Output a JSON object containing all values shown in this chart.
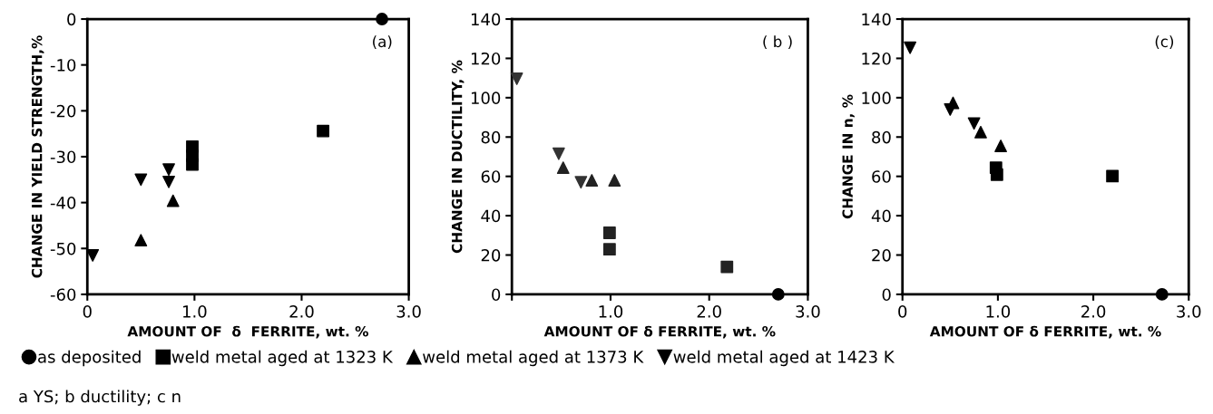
{
  "chart_data": [
    {
      "type": "scatter",
      "xlabel": "AMOUNT OF  δ  FERRITE, wt. %",
      "ylabel": "CHANGE IN YIELD STRENGTH,%",
      "xlim": [
        0,
        3
      ],
      "xticks": [
        0,
        {
          "value": 1,
          "label": "1.0"
        },
        {
          "value": 2,
          "label": "2.0"
        },
        {
          "value": 3,
          "label": "3.0"
        }
      ],
      "ylim": [
        -60,
        0
      ],
      "yticks": [
        -60,
        -50,
        -40,
        -30,
        -20,
        -10,
        0
      ],
      "grid": false,
      "legend": "bottom",
      "annotations": [
        "(a)",
        "a YS; b ductility; c n"
      ],
      "series": [
        {
          "name": "as deposited",
          "color": "#000000",
          "marker": "circle",
          "x": [
            2.75
          ],
          "values": [
            0
          ]
        },
        {
          "name": "weld metal aged at 1323 K",
          "color": "#000000",
          "marker": "square",
          "x": [
            0.98,
            0.98,
            0.98,
            2.2
          ],
          "values": [
            -27.8,
            -29.8,
            -31.7,
            -24.4
          ]
        },
        {
          "name": "weld metal aged at 1373 K",
          "color": "#000000",
          "marker": "triangle",
          "x": [
            0.5,
            0.8
          ],
          "values": [
            -48.2,
            -39.6
          ]
        },
        {
          "name": "weld metal aged at 1423 K",
          "color": "#000000",
          "marker": "triangle_down",
          "x": [
            0.05,
            0.5,
            0.76,
            0.76
          ],
          "values": [
            -51.5,
            -35,
            -32.8,
            -35.5
          ]
        }
      ]
    },
    {
      "type": "scatter",
      "xlabel": "AMOUNT OF δ FERRITE, wt. %",
      "ylabel": "CHANGE IN DUCTILITY, %",
      "xlim": [
        0,
        3
      ],
      "xticks": [
        {
          "value": 0,
          "label": null
        },
        {
          "value": 1,
          "label": "1.0"
        },
        {
          "value": 2,
          "label": "2.0"
        },
        {
          "value": 3,
          "label": "3.0"
        }
      ],
      "ylim": [
        0,
        140
      ],
      "yticks": [
        0,
        20,
        40,
        60,
        80,
        100,
        120,
        140
      ],
      "grid": false,
      "annotations": [
        "( b )"
      ],
      "series": [
        {
          "color": "#000000",
          "marker": "circle",
          "x": [
            2.7
          ],
          "values": [
            0
          ]
        },
        {
          "color": "#222222",
          "marker": "square",
          "x": [
            0.99,
            0.99,
            2.18
          ],
          "values": [
            31.3,
            22.9,
            14
          ]
        },
        {
          "color": "#222222",
          "marker": "triangle",
          "x": [
            0.52,
            0.81,
            1.04
          ],
          "values": [
            64.4,
            58,
            58
          ]
        },
        {
          "color": "#333333",
          "marker": "triangle_down",
          "x": [
            0.05,
            0.475,
            0.7
          ],
          "values": [
            109.6,
            71.5,
            57
          ]
        }
      ]
    },
    {
      "type": "scatter",
      "xlabel": "AMOUNT OF δ FERRITE, wt. %",
      "ylabel": "CHANGE IN n, %",
      "xlim": [
        0,
        3
      ],
      "xticks": [
        0,
        {
          "value": 1,
          "label": "1.0"
        },
        {
          "value": 2,
          "label": "2.0"
        },
        {
          "value": 3,
          "label": "3.0"
        }
      ],
      "ylim": [
        0,
        140
      ],
      "yticks": [
        0,
        20,
        40,
        60,
        80,
        100,
        120,
        140
      ],
      "grid": false,
      "annotations": [
        "(c)"
      ],
      "series": [
        {
          "color": "#000000",
          "marker": "circle",
          "x": [
            2.72
          ],
          "values": [
            0
          ]
        },
        {
          "color": "#000000",
          "marker": "square",
          "x": [
            0.98,
            0.99,
            2.2
          ],
          "values": [
            64.4,
            60.9,
            60.1
          ]
        },
        {
          "color": "#000000",
          "marker": "triangle",
          "x": [
            0.53,
            0.82,
            1.03
          ],
          "values": [
            97.4,
            82.5,
            75.5
          ]
        },
        {
          "color": "#000000",
          "marker": "triangle_down",
          "x": [
            0.08,
            0.5,
            0.75
          ],
          "values": [
            125.4,
            94,
            86.9
          ]
        }
      ]
    }
  ]
}
